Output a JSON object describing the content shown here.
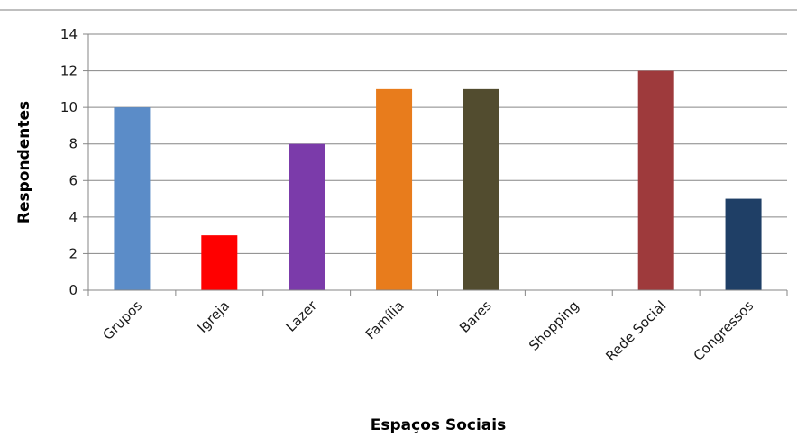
{
  "chart_data": {
    "type": "bar",
    "title": "",
    "xlabel": "Espaços Sociais",
    "ylabel": "Respondentes",
    "categories": [
      "Grupos",
      "Igreja",
      "Lazer",
      "Família",
      "Bares",
      "Shopping",
      "Rede Social",
      "Congressos"
    ],
    "values": [
      10,
      3,
      8,
      11,
      11,
      0,
      12,
      5
    ],
    "colors": [
      "#5B8CC8",
      "#FF0000",
      "#7B3BAA",
      "#E87C1C",
      "#524C2F",
      "#999999",
      "#9E3A3C",
      "#1F3F66"
    ],
    "ylim": [
      0,
      14
    ],
    "yticks": [
      0,
      2,
      4,
      6,
      8,
      10,
      12,
      14
    ],
    "grid": true,
    "legend": "none"
  }
}
